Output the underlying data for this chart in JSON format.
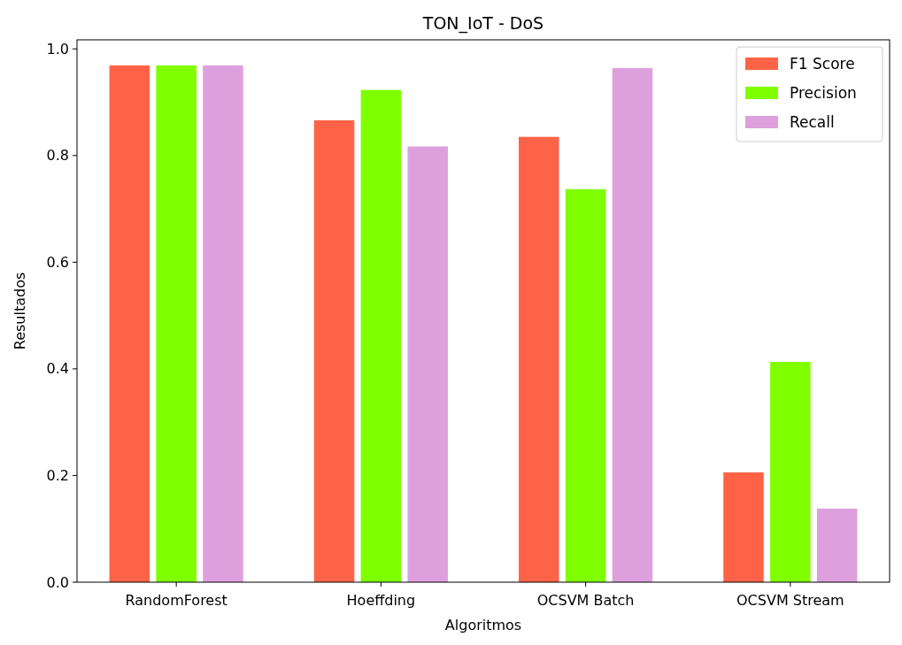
{
  "chart_data": {
    "type": "bar",
    "title": "TON_IoT - DoS",
    "xlabel": "Algoritmos",
    "ylabel": "Resultados",
    "categories": [
      "RandomForest",
      "Hoeffding",
      "OCSVM Batch",
      "OCSVM Stream"
    ],
    "series": [
      {
        "name": "F1 Score",
        "color": "#ff6347",
        "values": [
          0.969,
          0.866,
          0.835,
          0.206
        ]
      },
      {
        "name": "Precision",
        "color": "#7fff00",
        "values": [
          0.969,
          0.923,
          0.737,
          0.413
        ]
      },
      {
        "name": "Recall",
        "color": "#dda0dd",
        "values": [
          0.969,
          0.817,
          0.964,
          0.138
        ]
      }
    ],
    "ylim": [
      0,
      1.017
    ],
    "yticks": [
      {
        "value": 0,
        "label": "0.0"
      },
      {
        "value": 0.2,
        "label": "0.2"
      },
      {
        "value": 0.4,
        "label": "0.4"
      },
      {
        "value": 0.6,
        "label": "0.6"
      },
      {
        "value": 0.8,
        "label": "0.8"
      },
      {
        "value": 1,
        "label": "1.0"
      }
    ],
    "legend": "top right"
  }
}
